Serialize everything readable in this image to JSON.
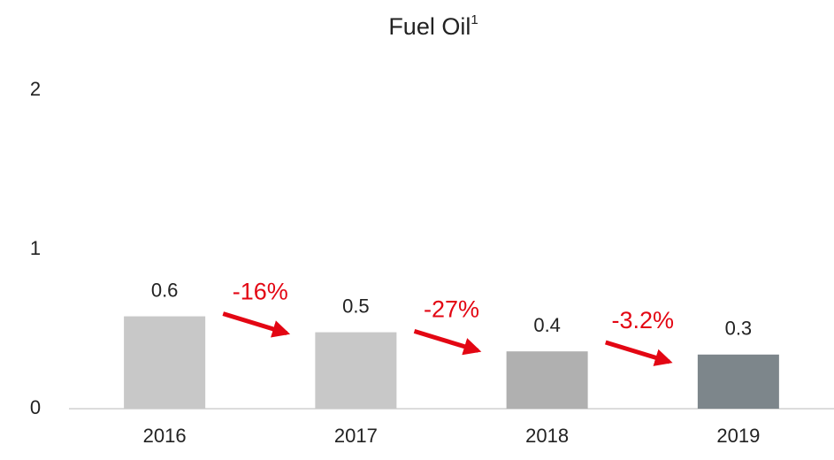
{
  "chart_data": {
    "type": "bar",
    "title": "Fuel Oil",
    "title_superscript": "1",
    "categories": [
      "2016",
      "2017",
      "2018",
      "2019"
    ],
    "values": [
      0.58,
      0.48,
      0.36,
      0.34
    ],
    "value_labels": [
      "0.6",
      "0.5",
      "0.4",
      "0.3"
    ],
    "colors": [
      "#c8c8c8",
      "#c8c8c8",
      "#b0b0b0",
      "#7d868b"
    ],
    "ylim": [
      0,
      2
    ],
    "yticks": [
      0,
      1,
      2
    ],
    "grid": false,
    "annotations": [
      "-16%",
      "-27%",
      "-3.2%"
    ],
    "annotation_color": "#e30613"
  }
}
